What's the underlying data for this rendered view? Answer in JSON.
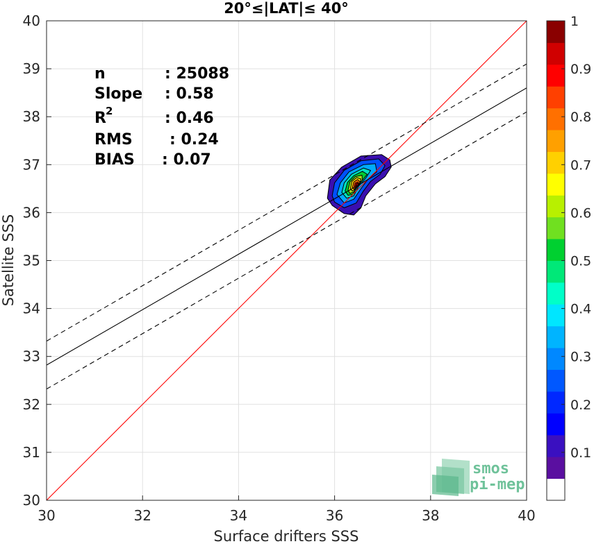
{
  "chart_data": {
    "type": "scatter",
    "title": "20°≤|LAT|≤ 40°",
    "xlabel": "Surface drifters SSS",
    "ylabel": "Satellite SSS",
    "xlim": [
      30,
      40
    ],
    "ylim": [
      30,
      40
    ],
    "xticks": [
      "30",
      "32",
      "34",
      "36",
      "38",
      "40"
    ],
    "yticks": [
      "30",
      "31",
      "32",
      "33",
      "34",
      "35",
      "36",
      "37",
      "38",
      "39",
      "40"
    ],
    "grid": true,
    "lines": [
      {
        "name": "identity",
        "style": "solid",
        "color": "#ff0000",
        "x": [
          30,
          40
        ],
        "y": [
          30,
          40
        ]
      },
      {
        "name": "fit",
        "style": "solid",
        "color": "#000000",
        "x": [
          30,
          40
        ],
        "y": [
          32.82,
          38.6
        ]
      },
      {
        "name": "fit-upper",
        "style": "dashed",
        "color": "#000000",
        "x": [
          30,
          40
        ],
        "y": [
          33.32,
          39.1
        ]
      },
      {
        "name": "fit-lower",
        "style": "dashed",
        "color": "#000000",
        "x": [
          30,
          40
        ],
        "y": [
          32.32,
          38.1
        ]
      }
    ],
    "density_contours": {
      "center": [
        36.45,
        36.57
      ],
      "levels": [
        {
          "level": 0.1,
          "color": "#3a0fb0",
          "points": [
            [
              35.85,
              36.3
            ],
            [
              35.9,
              36.68
            ],
            [
              36.15,
              36.95
            ],
            [
              36.55,
              37.18
            ],
            [
              36.98,
              37.21
            ],
            [
              37.15,
              37.1
            ],
            [
              37.18,
              36.95
            ],
            [
              37.05,
              36.75
            ],
            [
              36.85,
              36.6
            ],
            [
              36.65,
              36.35
            ],
            [
              36.55,
              36.1
            ],
            [
              36.4,
              35.95
            ],
            [
              36.2,
              35.98
            ],
            [
              35.95,
              36.15
            ]
          ]
        },
        {
          "level": 0.2,
          "color": "#0050ff",
          "points": [
            [
              35.95,
              36.35
            ],
            [
              36.0,
              36.62
            ],
            [
              36.2,
              36.88
            ],
            [
              36.55,
              37.08
            ],
            [
              36.92,
              37.12
            ],
            [
              37.05,
              36.98
            ],
            [
              36.95,
              36.8
            ],
            [
              36.75,
              36.65
            ],
            [
              36.6,
              36.45
            ],
            [
              36.45,
              36.2
            ],
            [
              36.2,
              36.1
            ],
            [
              36.0,
              36.22
            ]
          ]
        },
        {
          "level": 0.3,
          "color": "#00aaff",
          "points": [
            [
              36.05,
              36.38
            ],
            [
              36.12,
              36.62
            ],
            [
              36.3,
              36.85
            ],
            [
              36.6,
              37.0
            ],
            [
              36.85,
              37.02
            ],
            [
              36.88,
              36.85
            ],
            [
              36.7,
              36.7
            ],
            [
              36.55,
              36.5
            ],
            [
              36.4,
              36.28
            ],
            [
              36.2,
              36.2
            ]
          ]
        },
        {
          "level": 0.4,
          "color": "#00e0c0",
          "points": [
            [
              36.15,
              36.42
            ],
            [
              36.2,
              36.62
            ],
            [
              36.35,
              36.8
            ],
            [
              36.6,
              36.93
            ],
            [
              36.75,
              36.88
            ],
            [
              36.65,
              36.72
            ],
            [
              36.5,
              36.55
            ],
            [
              36.4,
              36.35
            ],
            [
              36.25,
              36.3
            ]
          ]
        },
        {
          "level": 0.5,
          "color": "#00cc33",
          "points": [
            [
              36.22,
              36.45
            ],
            [
              36.27,
              36.63
            ],
            [
              36.4,
              36.77
            ],
            [
              36.58,
              36.86
            ],
            [
              36.68,
              36.8
            ],
            [
              36.6,
              36.7
            ],
            [
              36.48,
              36.55
            ],
            [
              36.38,
              36.38
            ],
            [
              36.28,
              36.36
            ]
          ]
        },
        {
          "level": 0.6,
          "color": "#a0e020",
          "points": [
            [
              36.28,
              36.47
            ],
            [
              36.32,
              36.64
            ],
            [
              36.43,
              36.75
            ],
            [
              36.57,
              36.78
            ],
            [
              36.58,
              36.68
            ],
            [
              36.48,
              36.57
            ],
            [
              36.4,
              36.43
            ],
            [
              36.32,
              36.4
            ]
          ]
        },
        {
          "level": 0.7,
          "color": "#ffd000",
          "points": [
            [
              36.33,
              36.5
            ],
            [
              36.36,
              36.65
            ],
            [
              36.46,
              36.73
            ],
            [
              36.55,
              36.7
            ],
            [
              36.52,
              36.6
            ],
            [
              36.44,
              36.5
            ],
            [
              36.37,
              36.45
            ]
          ]
        },
        {
          "level": 0.8,
          "color": "#ff7000",
          "points": [
            [
              36.37,
              36.52
            ],
            [
              36.4,
              36.64
            ],
            [
              36.48,
              36.69
            ],
            [
              36.53,
              36.64
            ],
            [
              36.48,
              36.56
            ],
            [
              36.41,
              36.49
            ]
          ]
        },
        {
          "level": 0.9,
          "color": "#ee0000",
          "points": [
            [
              36.41,
              36.54
            ],
            [
              36.43,
              36.62
            ],
            [
              36.49,
              36.64
            ],
            [
              36.5,
              36.58
            ],
            [
              36.45,
              36.52
            ]
          ]
        },
        {
          "level": 1.0,
          "color": "#9a0000",
          "points": [
            [
              36.44,
              36.56
            ],
            [
              36.46,
              36.61
            ],
            [
              36.5,
              36.6
            ],
            [
              36.48,
              36.55
            ]
          ]
        }
      ]
    },
    "stats": [
      {
        "label": "n",
        "value": ": 25088"
      },
      {
        "label": "Slope",
        "value": ": 0.58"
      },
      {
        "label": "R",
        "sup": "2",
        "value": ": 0.46"
      },
      {
        "label": "RMS",
        "value": ": 0.24"
      },
      {
        "label": "BIAS",
        "value": ": 0.07"
      }
    ],
    "colorbar": {
      "ticks": [
        "0.1",
        "0.2",
        "0.3",
        "0.4",
        "0.5",
        "0.6",
        "0.7",
        "0.8",
        "0.9",
        "1"
      ],
      "tick_values": [
        0.1,
        0.2,
        0.3,
        0.4,
        0.5,
        0.6,
        0.7,
        0.8,
        0.9,
        1.0
      ],
      "range": [
        0,
        1
      ],
      "colors": [
        "#ffffff",
        "#5a0fa0",
        "#3a10c0",
        "#0000ff",
        "#0028ff",
        "#0058ff",
        "#0088ff",
        "#00b4ff",
        "#00e6ff",
        "#00ffc8",
        "#00e878",
        "#00d030",
        "#70e020",
        "#b8f000",
        "#ffff00",
        "#ffd000",
        "#ffa000",
        "#ff7000",
        "#ff4000",
        "#ff0000",
        "#d00000",
        "#8a0000"
      ]
    },
    "logo": [
      "smos",
      "pi-mep"
    ]
  }
}
